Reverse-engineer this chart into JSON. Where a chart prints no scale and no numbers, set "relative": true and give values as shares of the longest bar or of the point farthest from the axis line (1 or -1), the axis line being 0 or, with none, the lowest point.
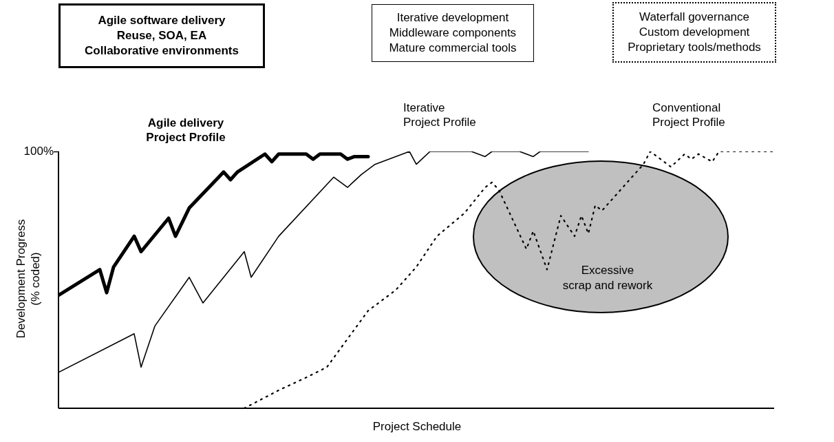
{
  "chart_data": {
    "type": "line",
    "xlabel": "Project Schedule",
    "ylabel": "Development Progress\n(% coded)",
    "annotations": [
      "Agile software delivery\nReuse, SOA, EA\nCollaborative environments",
      "Iterative development\nMiddleware components\nMature commercial tools",
      "Waterfall governance\nCustom development\nProprietary tools/methods",
      "Excessive\nscrap and rework",
      "100%"
    ],
    "categories": [
      null,
      null,
      null,
      null,
      null,
      null,
      null,
      null,
      null,
      null,
      null,
      null,
      null,
      null,
      null,
      null,
      null,
      null,
      null,
      null,
      null,
      null,
      null,
      null,
      null,
      null,
      null,
      null,
      null,
      null,
      null,
      null,
      null,
      null,
      null,
      null,
      null,
      null,
      null,
      null,
      null,
      null,
      null,
      null,
      null,
      null,
      null,
      null,
      null,
      null,
      null,
      null,
      null,
      null,
      null,
      null,
      null,
      null,
      null,
      null,
      null,
      null,
      null,
      null,
      null,
      null,
      null,
      null,
      null,
      null,
      null,
      null,
      null,
      null,
      null,
      null,
      null,
      null,
      null,
      null,
      null,
      null,
      null,
      null,
      null,
      null,
      null,
      null,
      null,
      null,
      null,
      null,
      null,
      null,
      null,
      null,
      null,
      null,
      null,
      null,
      null,
      null,
      null,
      null,
      null
    ],
    "series": [
      {
        "name": "Agile delivery\nProject Profile",
        "color": "#000000",
        "line_style": "solid",
        "values": [
          0.44,
          null,
          null,
          null,
          null,
          null,
          0.54,
          0.45,
          0.55,
          null,
          null,
          0.67,
          0.61,
          null,
          null,
          null,
          0.74,
          0.67,
          null,
          0.78,
          null,
          null,
          null,
          null,
          0.92,
          0.89,
          0.92,
          null,
          null,
          null,
          0.99,
          0.96,
          0.99,
          null,
          null,
          null,
          0.99,
          0.97,
          0.99,
          null,
          null,
          0.99,
          0.97,
          0.98,
          null,
          0.98,
          null,
          null,
          null,
          null,
          null,
          null,
          null,
          null,
          null,
          null,
          null,
          null,
          null,
          null,
          null,
          null,
          null,
          null,
          null,
          null,
          null,
          null,
          null,
          null,
          null,
          null,
          null,
          null,
          null,
          null,
          null,
          null,
          null,
          null,
          null,
          null,
          null,
          null,
          null,
          null,
          null,
          null,
          null,
          null,
          null,
          null,
          null,
          null,
          null,
          null,
          null,
          null,
          null,
          null,
          null,
          null,
          null,
          null,
          null
        ]
      },
      {
        "name": "Iterative\nProject Profile",
        "color": "#000000",
        "line_style": "solid",
        "values": [
          0.14,
          null,
          null,
          null,
          null,
          null,
          null,
          null,
          null,
          null,
          null,
          0.29,
          0.16,
          null,
          0.32,
          null,
          null,
          null,
          null,
          0.51,
          null,
          0.41,
          null,
          null,
          null,
          null,
          null,
          0.61,
          0.51,
          null,
          null,
          null,
          0.67,
          null,
          null,
          null,
          null,
          null,
          null,
          null,
          0.9,
          null,
          0.86,
          null,
          0.91,
          null,
          0.95,
          null,
          null,
          null,
          null,
          1,
          0.95,
          null,
          1,
          null,
          null,
          null,
          null,
          null,
          1,
          null,
          0.98,
          1,
          null,
          null,
          null,
          1,
          null,
          0.98,
          1,
          null,
          null,
          null,
          null,
          null,
          null,
          1,
          null,
          null,
          null,
          null,
          null,
          null,
          null,
          null,
          null,
          null,
          null,
          null,
          null,
          null,
          null,
          null,
          null,
          null,
          null,
          null,
          null,
          null,
          null,
          null,
          null,
          null,
          null
        ]
      },
      {
        "name": "Conventional\nProject Profile",
        "color": "#000000",
        "line_style": "dotted",
        "values": [
          null,
          null,
          null,
          null,
          null,
          null,
          null,
          null,
          null,
          null,
          null,
          null,
          null,
          null,
          null,
          null,
          null,
          null,
          null,
          null,
          null,
          null,
          null,
          null,
          null,
          null,
          null,
          0,
          null,
          null,
          null,
          null,
          0.07,
          null,
          null,
          null,
          0.12,
          null,
          null,
          0.16,
          null,
          null,
          0.27,
          null,
          null,
          0.38,
          null,
          null,
          null,
          0.46,
          null,
          null,
          0.55,
          null,
          null,
          0.67,
          null,
          null,
          null,
          0.76,
          null,
          null,
          0.86,
          0.88,
          0.85,
          null,
          null,
          null,
          0.62,
          0.69,
          null,
          0.54,
          null,
          0.75,
          null,
          0.67,
          0.75,
          0.68,
          0.79,
          0.77,
          null,
          null,
          null,
          null,
          null,
          0.95,
          1,
          null,
          null,
          0.94,
          null,
          0.99,
          0.97,
          0.99,
          null,
          0.96,
          1,
          null,
          null,
          null,
          null,
          null,
          null,
          null,
          1
        ]
      }
    ],
    "relative": true,
    "tick_labels": "y",
    "marker": "none"
  }
}
